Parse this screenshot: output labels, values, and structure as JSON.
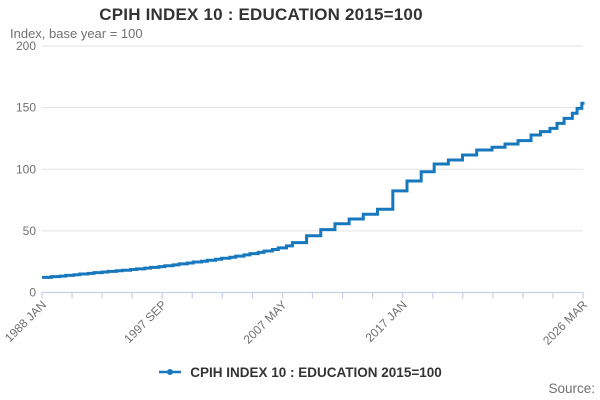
{
  "chart_data": {
    "type": "line",
    "step": true,
    "title": "CPIH INDEX 10 : EDUCATION 2015=100",
    "subtitle": "Index, base year = 100",
    "source_label": "Source:",
    "legend": {
      "label": "CPIH INDEX 10 : EDUCATION 2015=100",
      "position": "bottom"
    },
    "colors": {
      "line": "#1878be",
      "grid": "#e3e3e3",
      "axis": "#c2d1e4",
      "text": "#707070",
      "title_text": "#333333"
    },
    "x_axis": {
      "label_format": "YYYY MON",
      "start": "1988-01",
      "end": "2026-03",
      "tick_count": 19,
      "labeled_ticks": [
        {
          "index": 0,
          "label": "1988 JAN"
        },
        {
          "index": 4,
          "label": "1997 SEP"
        },
        {
          "index": 8,
          "label": "2007 MAY"
        },
        {
          "index": 12,
          "label": "2017 JAN"
        },
        {
          "index": 18,
          "label": "2026 MAR"
        }
      ]
    },
    "y_axis": {
      "min": 0,
      "max": 200,
      "ticks": [
        0,
        50,
        100,
        150,
        200
      ],
      "grid": true
    },
    "series": [
      {
        "name": "CPIH INDEX 10 : EDUCATION 2015=100",
        "interpolation": "step-after",
        "points": [
          [
            "1988-01",
            12.3
          ],
          [
            "1988-09",
            12.9
          ],
          [
            "1989-04",
            13.3
          ],
          [
            "1989-09",
            13.9
          ],
          [
            "1990-04",
            14.4
          ],
          [
            "1990-09",
            15.0
          ],
          [
            "1991-04",
            15.5
          ],
          [
            "1991-09",
            16.1
          ],
          [
            "1992-04",
            16.6
          ],
          [
            "1992-09",
            17.1
          ],
          [
            "1993-04",
            17.6
          ],
          [
            "1993-09",
            18.1
          ],
          [
            "1994-04",
            18.7
          ],
          [
            "1994-09",
            19.2
          ],
          [
            "1995-04",
            19.8
          ],
          [
            "1995-09",
            20.4
          ],
          [
            "1996-04",
            21.0
          ],
          [
            "1996-09",
            21.7
          ],
          [
            "1997-04",
            22.4
          ],
          [
            "1997-09",
            23.2
          ],
          [
            "1998-04",
            23.9
          ],
          [
            "1998-09",
            24.7
          ],
          [
            "1999-04",
            25.4
          ],
          [
            "1999-09",
            26.2
          ],
          [
            "2000-04",
            27.0
          ],
          [
            "2000-09",
            27.8
          ],
          [
            "2001-04",
            28.6
          ],
          [
            "2001-09",
            29.5
          ],
          [
            "2002-04",
            30.5
          ],
          [
            "2002-09",
            31.5
          ],
          [
            "2003-04",
            32.6
          ],
          [
            "2003-09",
            33.7
          ],
          [
            "2004-04",
            34.9
          ],
          [
            "2004-09",
            36.2
          ],
          [
            "2005-04",
            37.8
          ],
          [
            "2005-09",
            40.5
          ],
          [
            "2006-09",
            46.0
          ],
          [
            "2007-09",
            51.0
          ],
          [
            "2008-09",
            55.8
          ],
          [
            "2009-09",
            59.6
          ],
          [
            "2010-09",
            63.5
          ],
          [
            "2011-09",
            67.5
          ],
          [
            "2012-10",
            82.5
          ],
          [
            "2013-10",
            90.5
          ],
          [
            "2014-10",
            98.0
          ],
          [
            "2015-09",
            104.3
          ],
          [
            "2016-09",
            107.5
          ],
          [
            "2017-09",
            111.6
          ],
          [
            "2018-09",
            115.6
          ],
          [
            "2019-10",
            117.8
          ],
          [
            "2020-09",
            120.5
          ],
          [
            "2021-08",
            123.2
          ],
          [
            "2022-07",
            127.8
          ],
          [
            "2023-03",
            130.5
          ],
          [
            "2023-11",
            133.2
          ],
          [
            "2024-05",
            137.2
          ],
          [
            "2024-11",
            141.3
          ],
          [
            "2025-06",
            145.4
          ],
          [
            "2025-10",
            149.4
          ],
          [
            "2026-02",
            153.5
          ],
          [
            "2026-03",
            153.5
          ]
        ]
      }
    ]
  }
}
